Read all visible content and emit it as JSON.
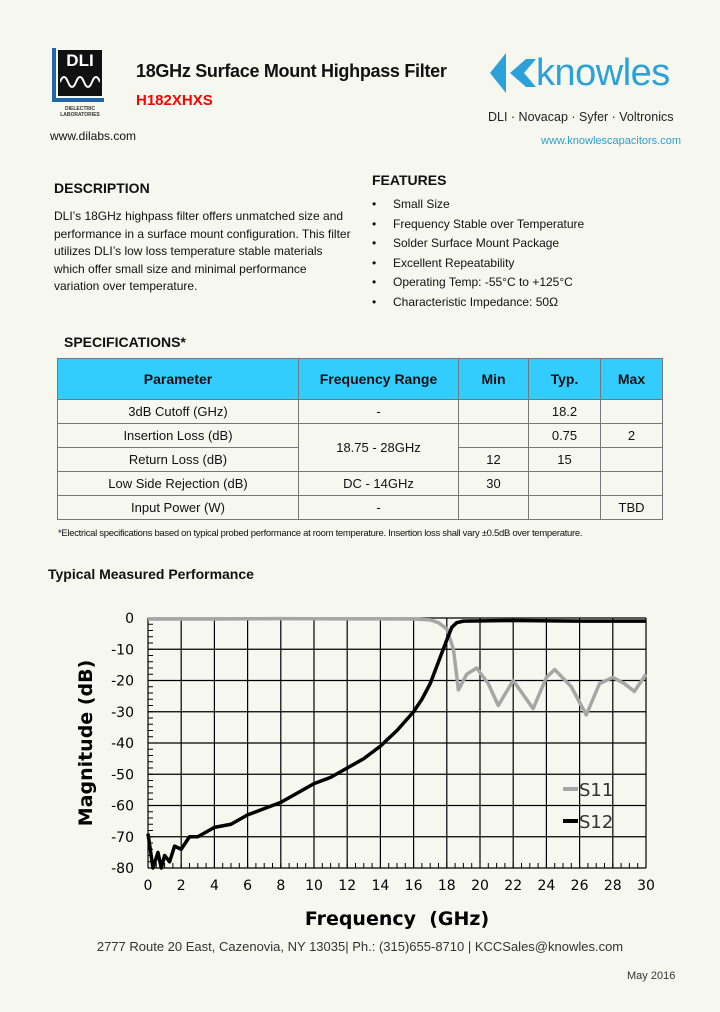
{
  "header": {
    "title": "18GHz Surface Mount Highpass Filter",
    "part_number": "H182XHXS",
    "dli_logo_text": "DLI",
    "dli_logo_sub": "DIELECTRIC LABORATORIES",
    "dli_website": "www.dilabs.com",
    "knowles_logo": "knowles",
    "brands": "DLI · Novacap · Syfer · Voltronics",
    "knowles_website": "www.knowlescapacitors.com"
  },
  "description": {
    "heading": "DESCRIPTION",
    "text": "DLI’s 18GHz highpass filter offers unmatched size and performance in a surface mount configuration.  This filter utilizes DLI’s low loss temperature stable materials which offer  small size and minimal performance variation over temperature."
  },
  "features": {
    "heading": "FEATURES",
    "items": [
      "Small Size",
      "Frequency Stable over Temperature",
      "Solder Surface Mount Package",
      "Excellent Repeatability",
      "Operating Temp: -55°C to +125°C",
      "Characteristic Impedance: 50Ω"
    ]
  },
  "specifications": {
    "heading": "SPECIFICATIONS*",
    "columns": [
      "Parameter",
      "Frequency Range",
      "Min",
      "Typ.",
      "Max"
    ],
    "rows": [
      [
        "3dB Cutoff (GHz)",
        "-",
        "",
        "18.2",
        ""
      ],
      [
        "Insertion Loss (dB)",
        "18.75 - 28GHz",
        "",
        "0.75",
        "2"
      ],
      [
        "Return Loss (dB)",
        "",
        "12",
        "15",
        ""
      ],
      [
        "Low Side Rejection (dB)",
        "DC - 14GHz",
        "30",
        "",
        ""
      ],
      [
        "Input Power (W)",
        "-",
        "",
        "",
        "TBD"
      ]
    ],
    "note": "*Electrical specifications based on typical probed performance at room temperature.  Insertion loss shall vary ±0.5dB over temperature."
  },
  "chart_heading": "Typical Measured Performance",
  "chart_data": {
    "type": "line",
    "title": "",
    "xlabel": "Frequency  (GHz)",
    "ylabel": "Magnitude (dB)",
    "xlim": [
      0,
      30
    ],
    "ylim": [
      -80,
      0
    ],
    "xticks": [
      0,
      2,
      4,
      6,
      8,
      10,
      12,
      14,
      16,
      18,
      20,
      22,
      24,
      26,
      28,
      30
    ],
    "yticks": [
      0,
      -10,
      -20,
      -30,
      -40,
      -50,
      -60,
      -70,
      -80
    ],
    "grid": true,
    "legend": "bottom-right",
    "series": [
      {
        "name": "S11",
        "color": "#a6a6a6",
        "x": [
          0,
          4,
          8,
          12,
          16,
          17,
          17.5,
          18,
          18.4,
          18.7,
          19.2,
          19.8,
          20.5,
          21.1,
          22,
          23.2,
          24,
          24.5,
          25.5,
          26.4,
          27.2,
          28,
          28.7,
          29.3,
          30
        ],
        "y": [
          -0.3,
          -0.3,
          -0.2,
          -0.3,
          -0.3,
          -0.6,
          -1.5,
          -3.5,
          -10,
          -23,
          -18,
          -16,
          -21,
          -28,
          -20,
          -29,
          -19,
          -16.5,
          -22,
          -31,
          -21,
          -19,
          -21,
          -23.5,
          -18
        ]
      },
      {
        "name": "S12",
        "color": "#000000",
        "x": [
          0,
          0.3,
          0.6,
          0.8,
          1,
          1.3,
          1.6,
          2,
          2.5,
          3,
          4,
          5,
          6,
          7,
          8,
          9,
          10,
          11,
          12,
          13,
          14,
          15,
          16,
          16.5,
          17,
          17.5,
          18,
          18.3,
          18.6,
          19,
          22,
          26,
          30
        ],
        "y": [
          -69,
          -80,
          -75,
          -80,
          -76,
          -78,
          -73,
          -74,
          -70,
          -70,
          -67,
          -66,
          -63,
          -61,
          -59,
          -56,
          -53,
          -51,
          -48,
          -45,
          -41,
          -36,
          -30,
          -26,
          -21,
          -14,
          -7,
          -3,
          -1.5,
          -1,
          -0.8,
          -1,
          -1
        ]
      }
    ]
  },
  "footer": {
    "address": "2777 Route 20 East, Cazenovia, NY 13035| Ph.: (315)655-8710 | KCCSales@knowles.com",
    "date": "May 2016"
  }
}
